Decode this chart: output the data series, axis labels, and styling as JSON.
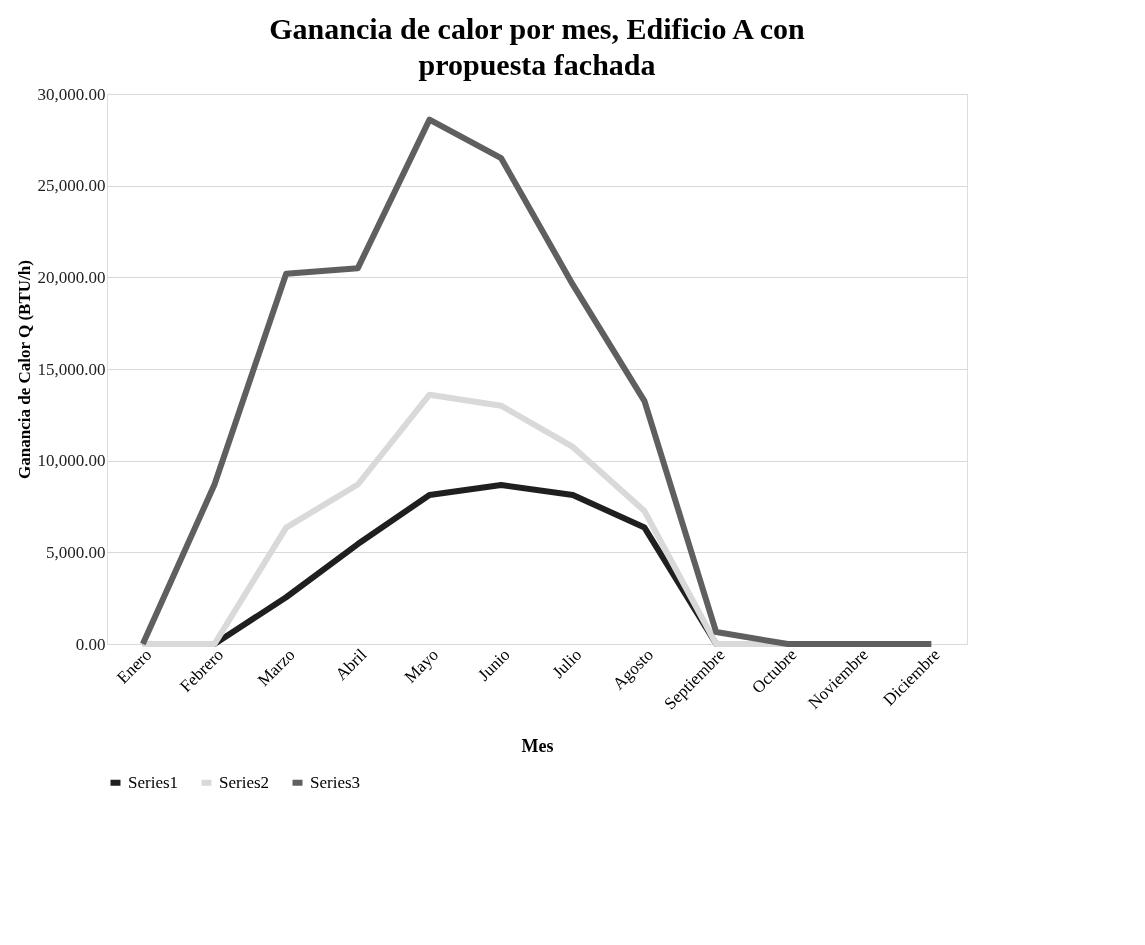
{
  "chart_data": {
    "type": "line",
    "title": "Ganancia de calor por mes, Edificio A con propuesta fachada",
    "xlabel": "Mes",
    "ylabel": "Ganancia de Calor Q (BTU/h)",
    "categories": [
      "Enero",
      "Febrero",
      "Marzo",
      "Abril",
      "Mayo",
      "Junio",
      "Julio",
      "Agosto",
      "Septiembre",
      "Octubre",
      "Noviembre",
      "Diciembre"
    ],
    "series": [
      {
        "name": "Series1",
        "color": "#1f1f1f",
        "values": [
          0,
          0,
          2550,
          5450,
          8130,
          8670,
          8130,
          6350,
          0,
          0,
          0,
          0
        ]
      },
      {
        "name": "Series2",
        "color": "#d9d9d9",
        "values": [
          0,
          0,
          6350,
          8700,
          13600,
          13000,
          10750,
          7250,
          0,
          0,
          0,
          0
        ]
      },
      {
        "name": "Series3",
        "color": "#5f5f5f",
        "values": [
          0,
          8700,
          20200,
          20500,
          28600,
          26500,
          19600,
          13250,
          650,
          0,
          0,
          0
        ]
      }
    ],
    "ylim": [
      0,
      30000
    ],
    "yticks": [
      {
        "value": 0,
        "label": "0.00"
      },
      {
        "value": 5000,
        "label": "5,000.00"
      },
      {
        "value": 10000,
        "label": "10,000.00"
      },
      {
        "value": 15000,
        "label": "15,000.00"
      },
      {
        "value": 20000,
        "label": "20,000.00"
      },
      {
        "value": 25000,
        "label": "25,000.00"
      },
      {
        "value": 30000,
        "label": "30,000.00"
      }
    ],
    "grid": "y",
    "legend": "bottom",
    "marker": "none",
    "line_style": "solid"
  }
}
